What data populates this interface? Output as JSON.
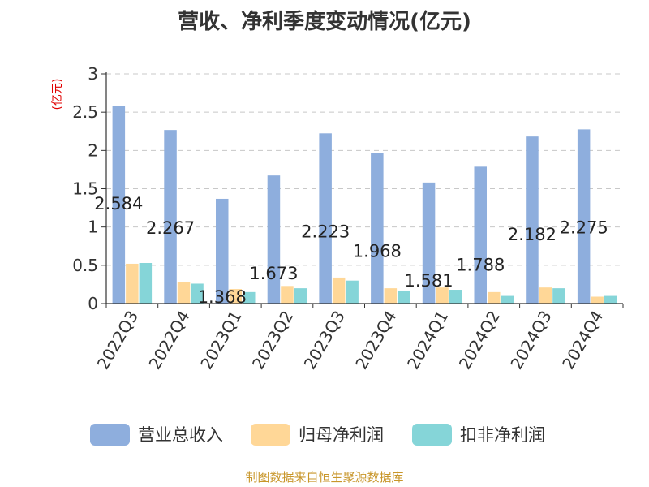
{
  "chart_data": {
    "type": "bar",
    "title": "营收、净利季度变动情况(亿元)",
    "ylabel": "(亿元)",
    "xlabel": "",
    "categories": [
      "2022Q3",
      "2022Q4",
      "2023Q1",
      "2023Q2",
      "2023Q3",
      "2023Q4",
      "2024Q1",
      "2024Q2",
      "2024Q3",
      "2024Q4"
    ],
    "series": [
      {
        "name": "营业总收入",
        "color": "#8eaedd",
        "values": [
          2.584,
          2.267,
          1.368,
          1.673,
          2.223,
          1.968,
          1.581,
          1.788,
          2.182,
          2.275
        ]
      },
      {
        "name": "归母净利润",
        "color": "#ffd797",
        "values": [
          0.52,
          0.28,
          0.19,
          0.23,
          0.34,
          0.2,
          0.21,
          0.15,
          0.21,
          0.09
        ]
      },
      {
        "name": "扣非净利润",
        "color": "#85d5d8",
        "values": [
          0.53,
          0.26,
          0.15,
          0.2,
          0.3,
          0.17,
          0.18,
          0.1,
          0.2,
          0.1
        ]
      }
    ],
    "data_labels": [
      "2.584",
      "2.267",
      "1.368",
      "1.673",
      "2.223",
      "1.968",
      "1.581",
      "1.788",
      "2.182",
      "2.275"
    ],
    "ylim": [
      0,
      3
    ],
    "yticks": [
      0,
      0.5,
      1,
      1.5,
      2,
      2.5,
      3
    ],
    "ytick_labels": [
      "0",
      "0.5",
      "1",
      "1.5",
      "2",
      "2.5",
      "3"
    ],
    "grid": true,
    "legend_position": "bottom"
  },
  "source_note": "制图数据来自恒生聚源数据库"
}
